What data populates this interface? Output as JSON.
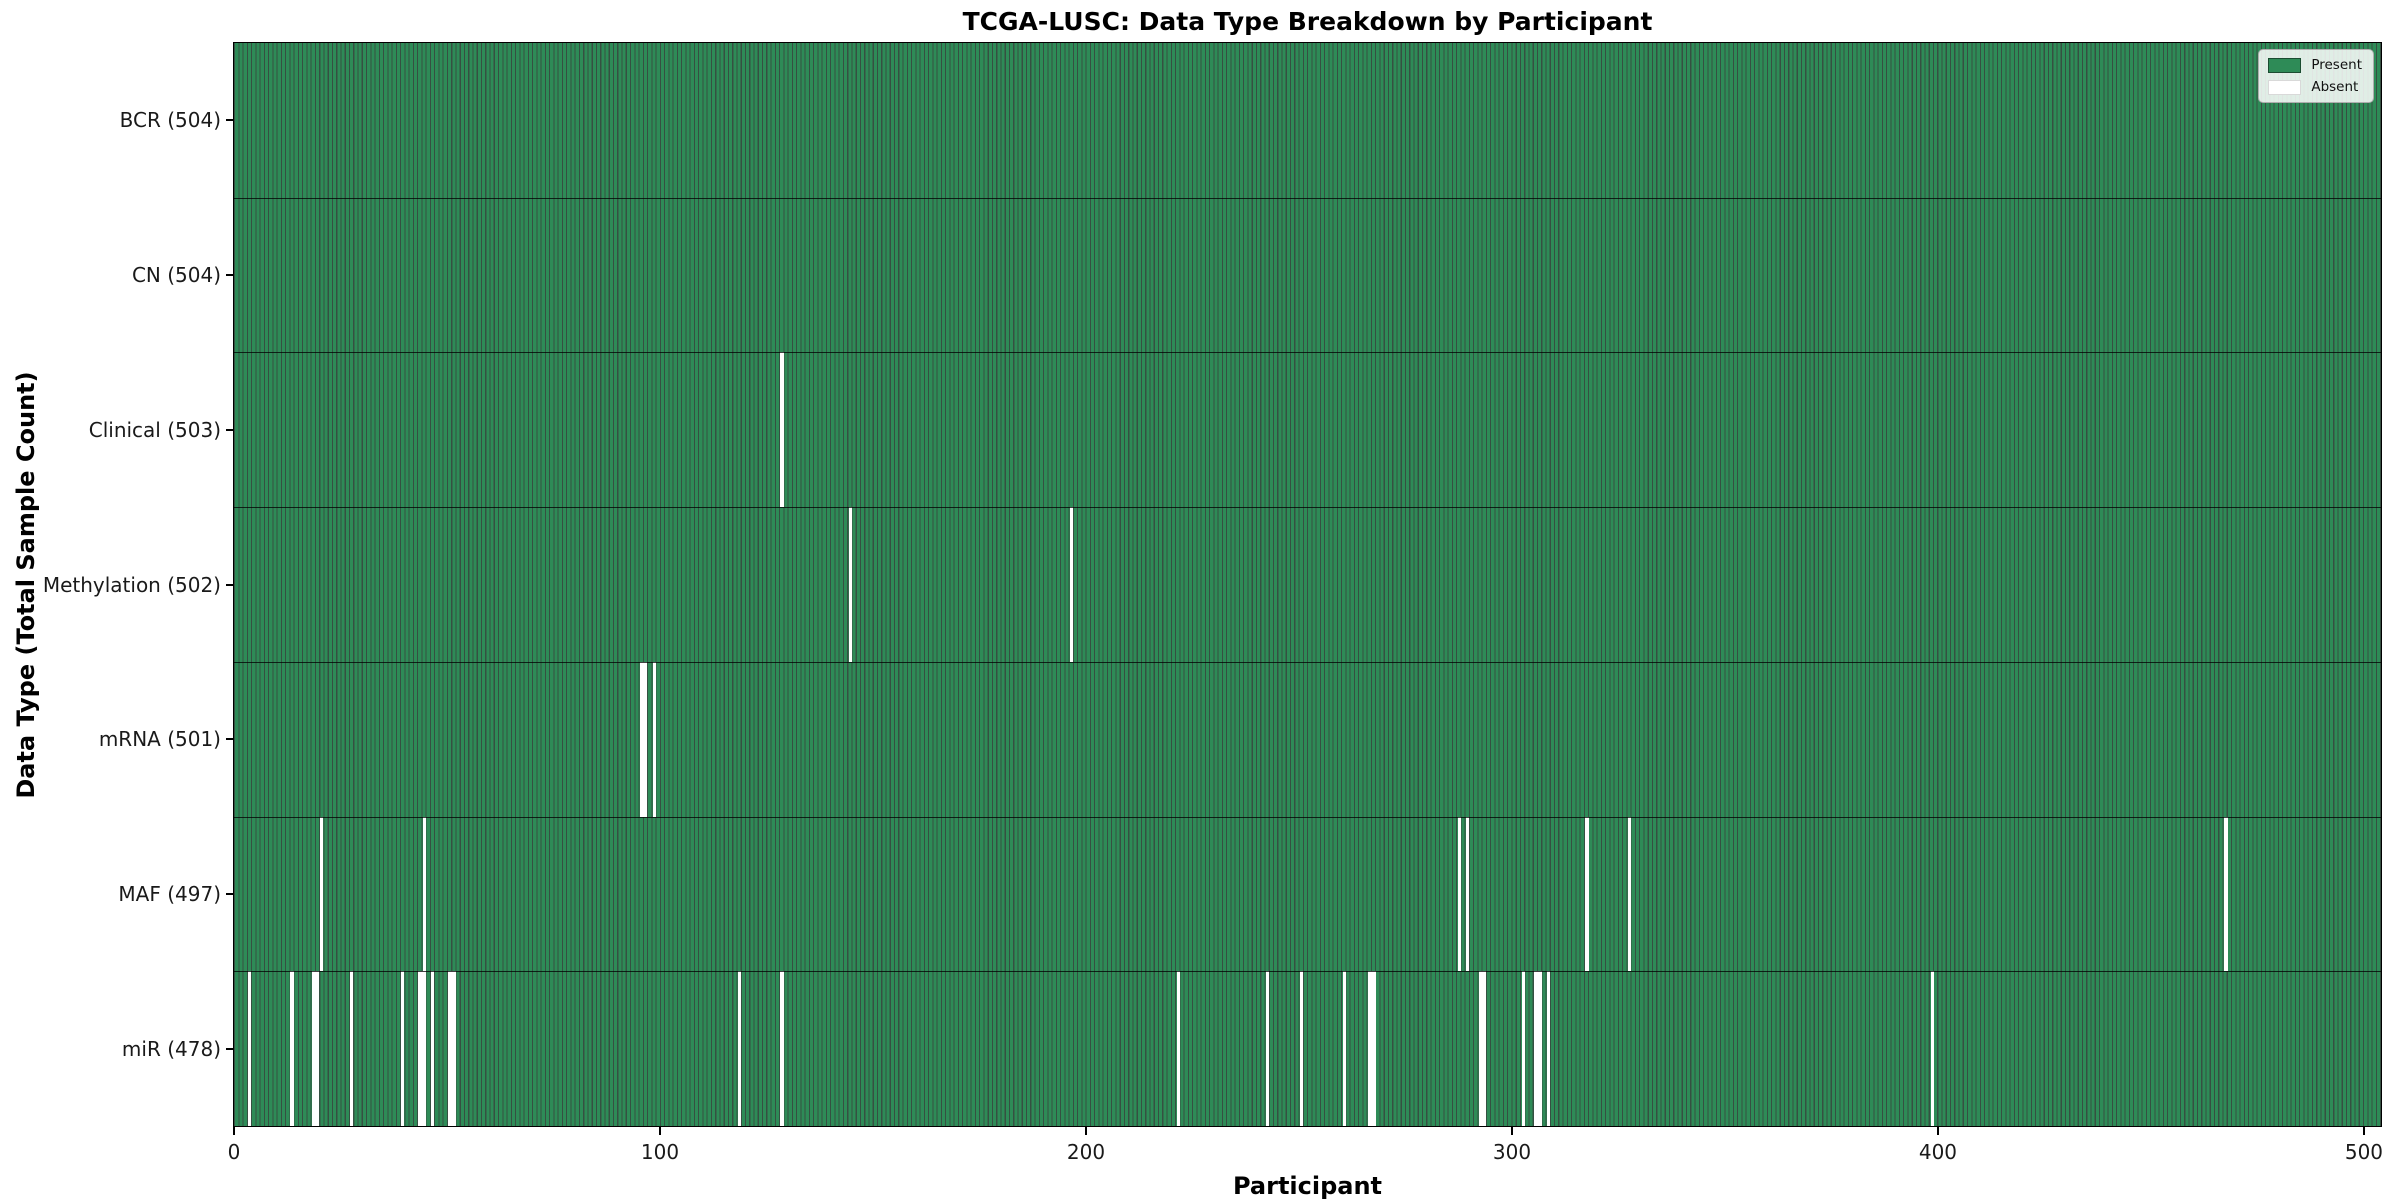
{
  "title": "TCGA-LUSC: Data Type Breakdown by Participant",
  "xlabel": "Participant",
  "ylabel": "Data Type (Total Sample Count)",
  "legend": {
    "present_label": "Present",
    "absent_label": "Absent"
  },
  "colors": {
    "present": "#2e8b57",
    "bar_edge": "rgba(9,42,24,0.82)",
    "absent": "#ffffff",
    "text": "#111111"
  },
  "chart_data": {
    "type": "heatmap",
    "title": "TCGA-LUSC: Data Type Breakdown by Participant",
    "xlabel": "Participant",
    "ylabel": "Data Type (Total Sample Count)",
    "x_range": [
      0,
      504
    ],
    "x_ticks": [
      0,
      100,
      200,
      300,
      400,
      500
    ],
    "total_participants": 504,
    "grid": false,
    "legend_position": "upper right",
    "legend": [
      {
        "label": "Present",
        "color": "#2e8b57"
      },
      {
        "label": "Absent",
        "color": "#ffffff"
      }
    ],
    "rows": [
      {
        "name": "BCR",
        "label": "BCR (504)",
        "present_count": 504,
        "absent_participants": []
      },
      {
        "name": "CN",
        "label": "CN (504)",
        "present_count": 504,
        "absent_participants": []
      },
      {
        "name": "Clinical",
        "label": "Clinical (503)",
        "present_count": 503,
        "absent_participants": [
          128
        ]
      },
      {
        "name": "Methylation",
        "label": "Methylation (502)",
        "present_count": 502,
        "absent_participants": [
          144,
          196
        ]
      },
      {
        "name": "mRNA",
        "label": "mRNA (501)",
        "present_count": 501,
        "absent_participants": [
          95,
          96,
          98
        ]
      },
      {
        "name": "MAF",
        "label": "MAF (497)",
        "present_count": 497,
        "absent_participants": [
          20,
          44,
          287,
          289,
          317,
          327,
          467
        ]
      },
      {
        "name": "miR",
        "label": "miR (478)",
        "present_count": 478,
        "absent_participants": [
          3,
          13,
          18,
          19,
          27,
          39,
          43,
          44,
          46,
          50,
          51,
          118,
          128,
          221,
          242,
          250,
          260,
          266,
          267,
          292,
          293,
          302,
          305,
          306,
          308,
          398
        ]
      }
    ]
  }
}
